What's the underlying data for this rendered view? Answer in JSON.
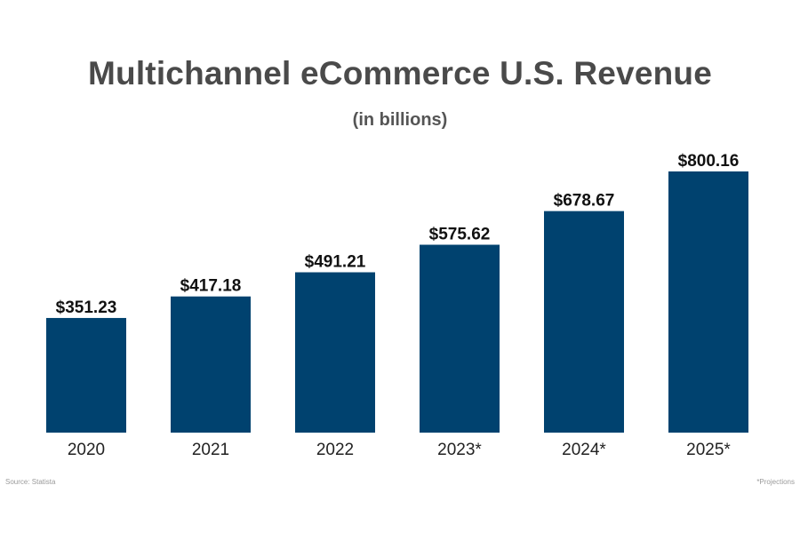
{
  "chart_data": {
    "type": "bar",
    "title": "Multichannel eCommerce U.S. Revenue",
    "subtitle": "(in billions)",
    "categories": [
      "2020",
      "2021",
      "2022",
      "2023*",
      "2024*",
      "2025*"
    ],
    "values": [
      351.23,
      417.18,
      491.21,
      575.62,
      678.67,
      800.16
    ],
    "value_labels": [
      "$351.23",
      "$417.18",
      "$491.21",
      "$575.62",
      "$678.67",
      "$800.16"
    ],
    "xlabel": "",
    "ylabel": "",
    "ylim": [
      0,
      800.16
    ],
    "grid": false,
    "bar_color": "#00426f"
  },
  "footnotes": {
    "source": "Source: Statista",
    "projection": "*Projections"
  }
}
